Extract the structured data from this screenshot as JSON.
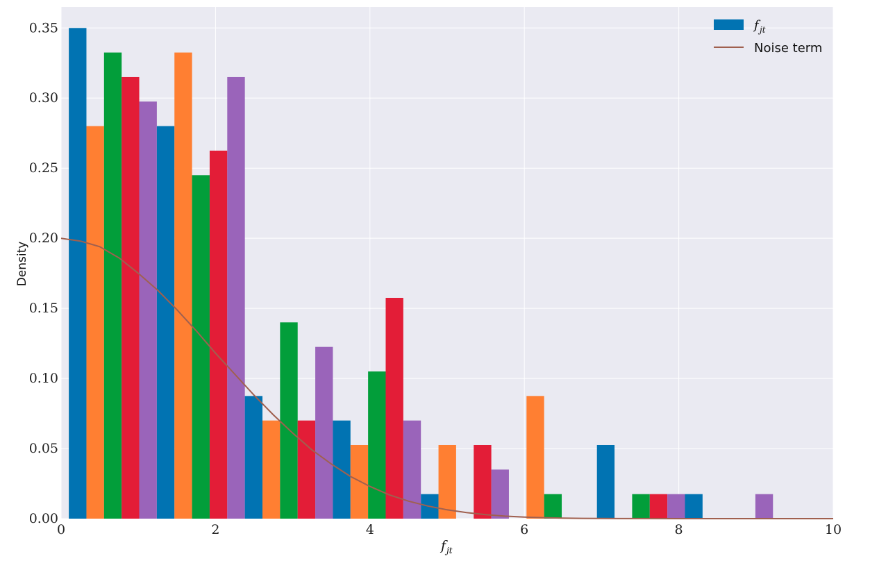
{
  "chart_data": {
    "type": "bar",
    "xlabel": "f_jt",
    "ylabel": "Density",
    "xlim": [
      0,
      10
    ],
    "ylim": [
      0,
      0.365
    ],
    "xticks": [
      "0",
      "2",
      "4",
      "6",
      "8",
      "10"
    ],
    "yticks": [
      "0.00",
      "0.05",
      "0.10",
      "0.15",
      "0.20",
      "0.25",
      "0.30",
      "0.35"
    ],
    "grid": true,
    "legend_position": "top-right",
    "legend": [
      {
        "label": "f_jt",
        "kind": "patch",
        "color": "#0173B2"
      },
      {
        "label": "Noise term",
        "kind": "line",
        "color": "#A0604F"
      }
    ],
    "bin_edges": [
      0.1,
      1.24,
      2.38,
      3.52,
      4.66,
      5.8,
      6.94,
      8.08,
      9.22
    ],
    "series": [
      {
        "color": "#0173B2",
        "values": [
          0.35,
          0.28,
          0.0875,
          0.07,
          0.0175,
          0.0,
          0.0525,
          0.0175
        ]
      },
      {
        "color": "#FF7F32",
        "values": [
          0.28,
          0.3325,
          0.07,
          0.0525,
          0.0525,
          0.0875,
          0.0,
          0.0
        ]
      },
      {
        "color": "#029E3A",
        "values": [
          0.3325,
          0.245,
          0.14,
          0.105,
          0.0,
          0.0175,
          0.0175,
          0.0
        ]
      },
      {
        "color": "#E31D37",
        "values": [
          0.315,
          0.2625,
          0.07,
          0.1575,
          0.0525,
          0.0,
          0.0175,
          0.0
        ]
      },
      {
        "color": "#9A64BA",
        "values": [
          0.2975,
          0.315,
          0.1225,
          0.07,
          0.035,
          0.0,
          0.0175,
          0.0175
        ]
      }
    ],
    "noise_curve": {
      "color": "#A0604F",
      "x": [
        0,
        0.25,
        0.5,
        0.75,
        1.0,
        1.25,
        1.5,
        1.75,
        2.0,
        2.25,
        2.5,
        2.75,
        3.0,
        3.25,
        3.5,
        3.75,
        4.0,
        4.25,
        4.5,
        4.75,
        5.0,
        5.25,
        5.5,
        5.75,
        6.0,
        6.25,
        6.5,
        6.75,
        7.0,
        7.5,
        8.0,
        8.5,
        9.0,
        9.5,
        10.0
      ],
      "y": [
        0.2,
        0.198,
        0.194,
        0.186,
        0.175,
        0.163,
        0.149,
        0.134,
        0.118,
        0.103,
        0.088,
        0.074,
        0.061,
        0.049,
        0.039,
        0.03,
        0.023,
        0.017,
        0.0125,
        0.009,
        0.0063,
        0.0043,
        0.0028,
        0.0018,
        0.0011,
        0.0007,
        0.0004,
        0.0002,
        0.0001,
        3e-05,
        1e-05,
        0.0,
        0.0,
        0.0,
        0.0
      ]
    }
  }
}
